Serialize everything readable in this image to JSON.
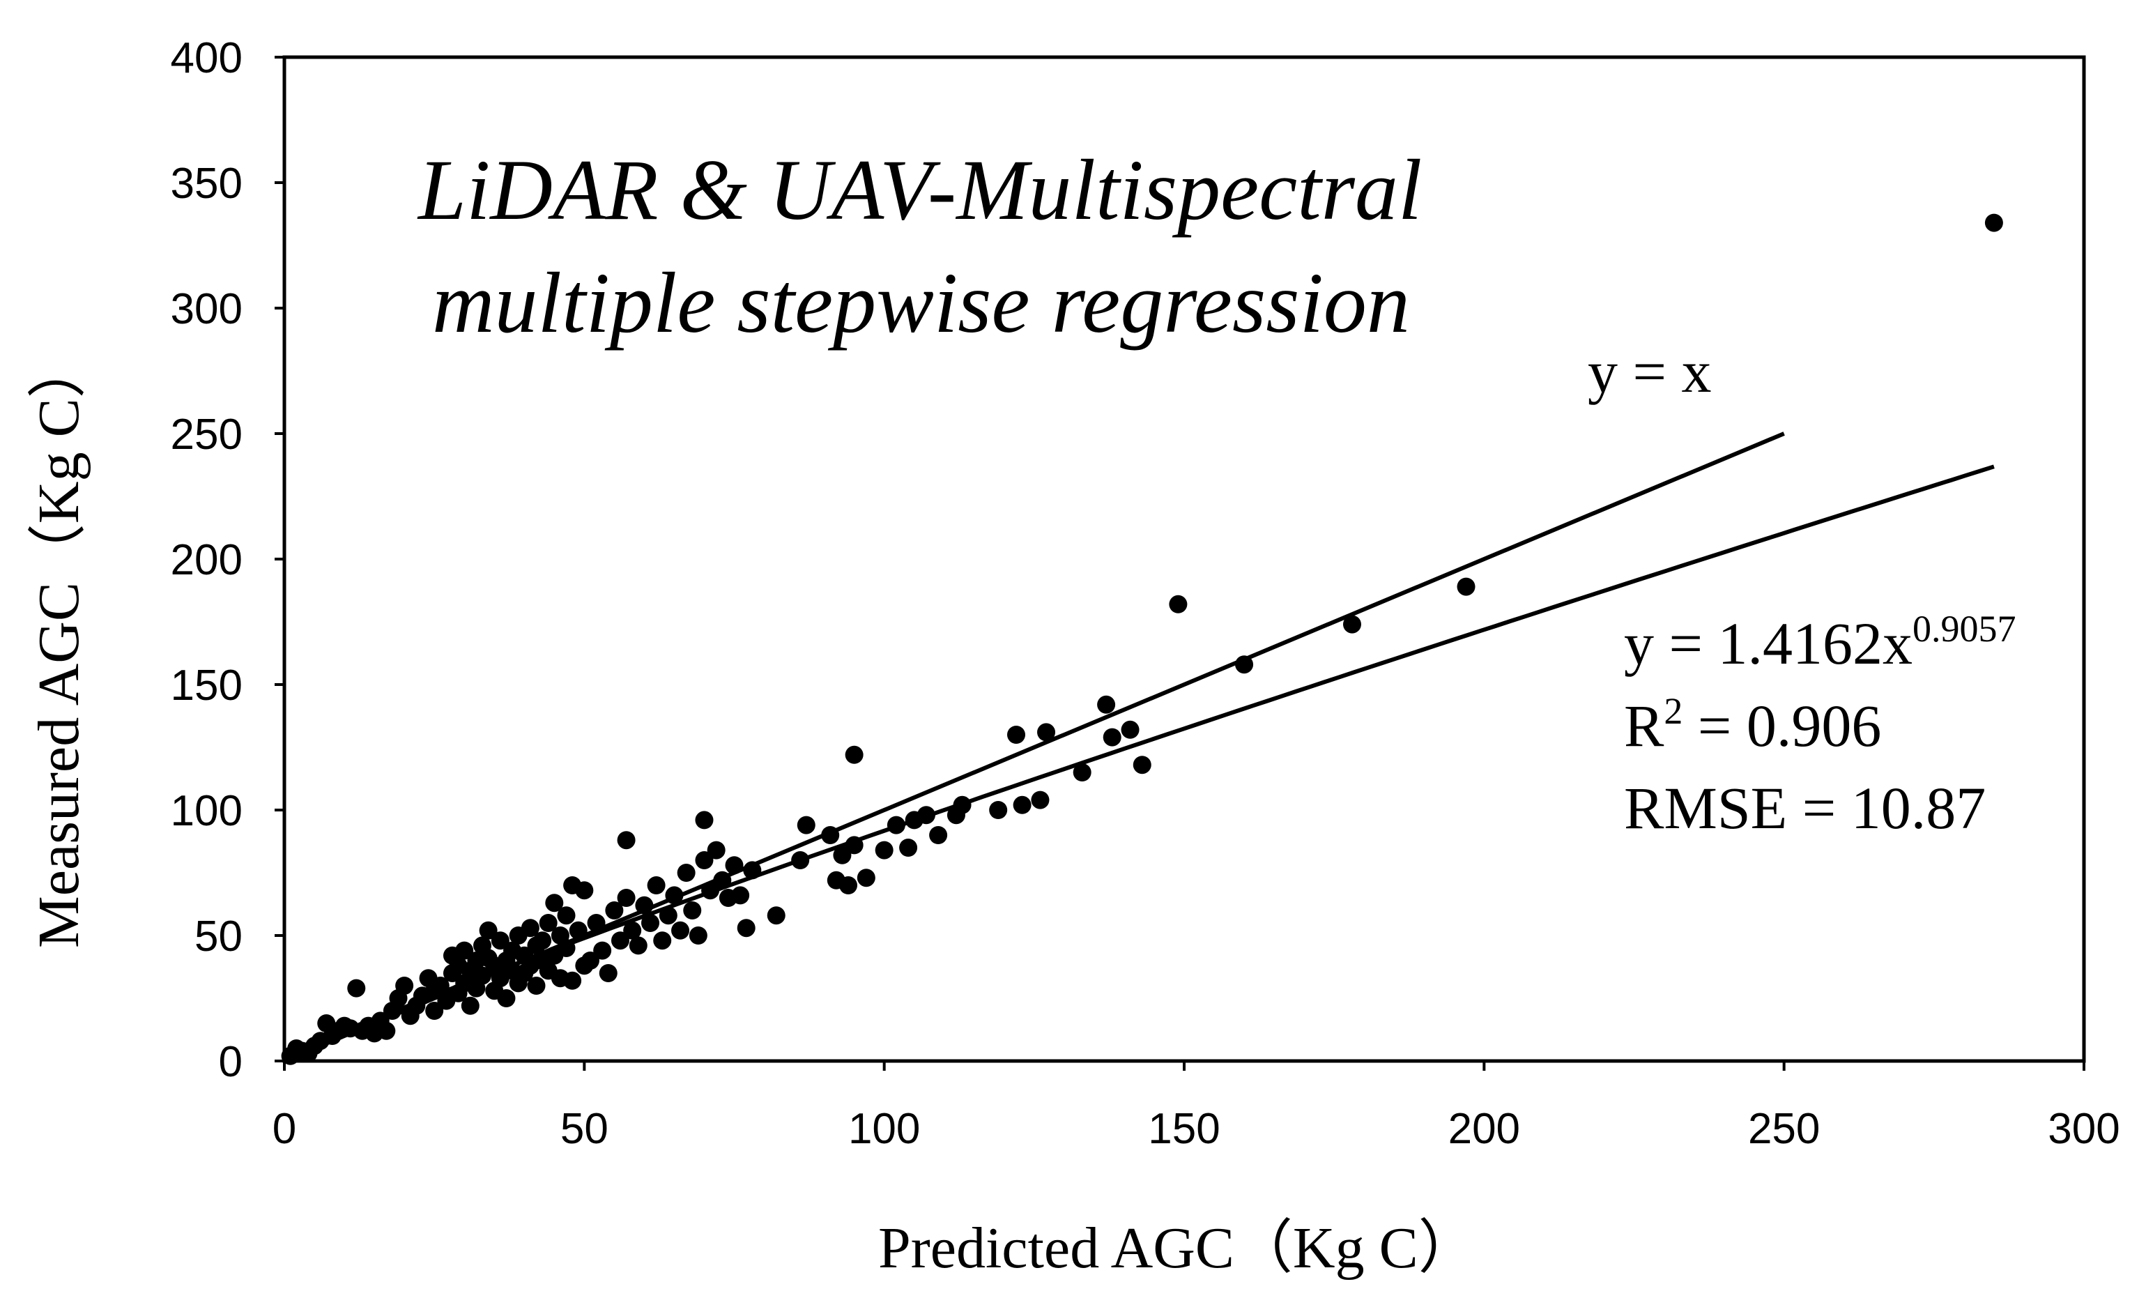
{
  "chart_data": {
    "type": "scatter",
    "title_line1": "LiDAR & UAV-Multispectral",
    "title_line2": "multiple stepwise regression",
    "xlabel": "Predicted  AGC（Kg C）",
    "ylabel": "Measured  AGC（Kg C）",
    "xlim": [
      0,
      300
    ],
    "ylim": [
      0,
      400
    ],
    "xticks": [
      0,
      50,
      100,
      150,
      200,
      250,
      300
    ],
    "yticks": [
      0,
      50,
      100,
      150,
      200,
      250,
      300,
      350,
      400
    ],
    "xtick_labels": [
      "0",
      "50",
      "100",
      "150",
      "200",
      "250",
      "300"
    ],
    "ytick_labels": [
      "0",
      "50",
      "100",
      "150",
      "200",
      "250",
      "300",
      "350",
      "400"
    ],
    "grid": false,
    "point_color": "#000000",
    "identity_line": {
      "label": "y = x",
      "x_range": [
        0,
        250
      ]
    },
    "fit_line": {
      "a": 1.4162,
      "b": 0.9057,
      "x_range": [
        0,
        285
      ]
    },
    "annotations": {
      "equation_base": "y = 1.4162x",
      "equation_exp": "0.9057",
      "r2_prefix": "R",
      "r2_sup": "2",
      "r2_rest": " = 0.906",
      "rmse": "RMSE = 10.87"
    },
    "points": [
      [
        1,
        2
      ],
      [
        2,
        5
      ],
      [
        3,
        4
      ],
      [
        4,
        3
      ],
      [
        5,
        6
      ],
      [
        6,
        8
      ],
      [
        7,
        15
      ],
      [
        8,
        10
      ],
      [
        9,
        12
      ],
      [
        10,
        14
      ],
      [
        11,
        13
      ],
      [
        12,
        29
      ],
      [
        13,
        12
      ],
      [
        14,
        14
      ],
      [
        15,
        11
      ],
      [
        16,
        16
      ],
      [
        17,
        12
      ],
      [
        18,
        20
      ],
      [
        19,
        25
      ],
      [
        20,
        30
      ],
      [
        21,
        18
      ],
      [
        22,
        22
      ],
      [
        23,
        26
      ],
      [
        24,
        33
      ],
      [
        25,
        28
      ],
      [
        25,
        20
      ],
      [
        26,
        30
      ],
      [
        27,
        24
      ],
      [
        28,
        35
      ],
      [
        28,
        42
      ],
      [
        29,
        38
      ],
      [
        29,
        27
      ],
      [
        30,
        44
      ],
      [
        30,
        31
      ],
      [
        31,
        36
      ],
      [
        31,
        22
      ],
      [
        32,
        40
      ],
      [
        32,
        29
      ],
      [
        33,
        46
      ],
      [
        33,
        34
      ],
      [
        34,
        41
      ],
      [
        34,
        52
      ],
      [
        35,
        38
      ],
      [
        35,
        28
      ],
      [
        36,
        48
      ],
      [
        36,
        33
      ],
      [
        37,
        40
      ],
      [
        37,
        25
      ],
      [
        38,
        44
      ],
      [
        38,
        36
      ],
      [
        39,
        50
      ],
      [
        39,
        31
      ],
      [
        40,
        42
      ],
      [
        40,
        35
      ],
      [
        41,
        53
      ],
      [
        41,
        38
      ],
      [
        42,
        46
      ],
      [
        42,
        30
      ],
      [
        43,
        48
      ],
      [
        43,
        40
      ],
      [
        44,
        55
      ],
      [
        44,
        36
      ],
      [
        45,
        63
      ],
      [
        45,
        42
      ],
      [
        46,
        50
      ],
      [
        46,
        33
      ],
      [
        47,
        58
      ],
      [
        47,
        45
      ],
      [
        48,
        70
      ],
      [
        48,
        32
      ],
      [
        49,
        52
      ],
      [
        50,
        68
      ],
      [
        50,
        38
      ],
      [
        51,
        40
      ],
      [
        52,
        55
      ],
      [
        53,
        44
      ],
      [
        54,
        35
      ],
      [
        55,
        60
      ],
      [
        56,
        48
      ],
      [
        57,
        65
      ],
      [
        57,
        88
      ],
      [
        58,
        52
      ],
      [
        59,
        46
      ],
      [
        60,
        62
      ],
      [
        61,
        55
      ],
      [
        62,
        70
      ],
      [
        63,
        48
      ],
      [
        64,
        58
      ],
      [
        65,
        66
      ],
      [
        66,
        52
      ],
      [
        67,
        75
      ],
      [
        68,
        60
      ],
      [
        69,
        50
      ],
      [
        70,
        96
      ],
      [
        70,
        80
      ],
      [
        71,
        68
      ],
      [
        72,
        84
      ],
      [
        73,
        72
      ],
      [
        74,
        65
      ],
      [
        75,
        78
      ],
      [
        76,
        66
      ],
      [
        77,
        53
      ],
      [
        78,
        76
      ],
      [
        82,
        58
      ],
      [
        86,
        80
      ],
      [
        87,
        94
      ],
      [
        91,
        90
      ],
      [
        92,
        72
      ],
      [
        93,
        82
      ],
      [
        94,
        70
      ],
      [
        95,
        122
      ],
      [
        95,
        86
      ],
      [
        97,
        73
      ],
      [
        100,
        84
      ],
      [
        102,
        94
      ],
      [
        104,
        85
      ],
      [
        105,
        96
      ],
      [
        107,
        98
      ],
      [
        109,
        90
      ],
      [
        112,
        98
      ],
      [
        113,
        102
      ],
      [
        119,
        100
      ],
      [
        122,
        130
      ],
      [
        123,
        102
      ],
      [
        126,
        104
      ],
      [
        127,
        131
      ],
      [
        133,
        115
      ],
      [
        137,
        142
      ],
      [
        138,
        129
      ],
      [
        141,
        132
      ],
      [
        143,
        118
      ],
      [
        149,
        182
      ],
      [
        160,
        158
      ],
      [
        178,
        174
      ],
      [
        197,
        189
      ],
      [
        285,
        334
      ]
    ]
  }
}
